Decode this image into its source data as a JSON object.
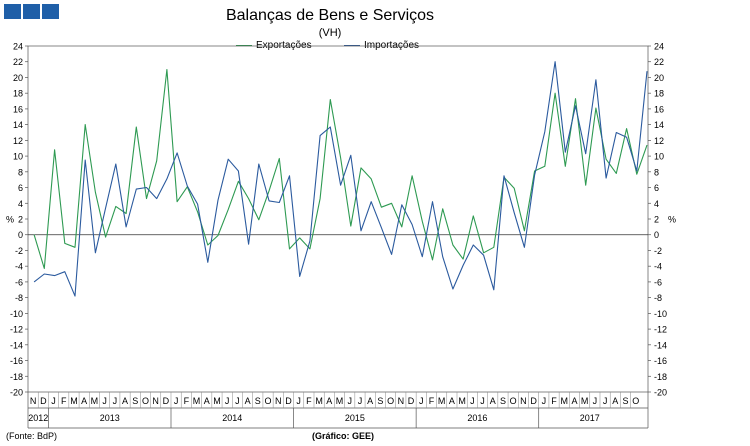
{
  "header": {
    "title": "Balanças de Bens e Serviços",
    "subtitle": "(VH)",
    "unit_left": "%",
    "unit_right": "%"
  },
  "footer": {
    "source": "(Fonte: BdP)",
    "credit": "(Gráfico: GEE)"
  },
  "chart_data": {
    "type": "line",
    "title": "Balanças de Bens e Serviços",
    "subtitle": "(VH)",
    "ylabel": "%",
    "ylabel_right": "%",
    "ylim": [
      -20,
      24
    ],
    "ytick_step": 2,
    "grid": false,
    "legend_position": "top-center",
    "month_labels": [
      "N",
      "D",
      "J",
      "F",
      "M",
      "A",
      "M",
      "J",
      "J",
      "A",
      "S",
      "O",
      "N",
      "D",
      "J",
      "F",
      "M",
      "A",
      "M",
      "J",
      "J",
      "A",
      "S",
      "O",
      "N",
      "D",
      "J",
      "F",
      "M",
      "A",
      "M",
      "J",
      "J",
      "A",
      "S",
      "O",
      "N",
      "D",
      "J",
      "F",
      "M",
      "A",
      "M",
      "J",
      "J",
      "A",
      "S",
      "O",
      "N",
      "D",
      "J",
      "F",
      "M",
      "A",
      "M",
      "J",
      "J",
      "A",
      "S",
      "O"
    ],
    "year_groups": [
      {
        "label": "2012",
        "start": 0,
        "count": 2
      },
      {
        "label": "2013",
        "start": 2,
        "count": 12
      },
      {
        "label": "2014",
        "start": 14,
        "count": 12
      },
      {
        "label": "2015",
        "start": 26,
        "count": 12
      },
      {
        "label": "2016",
        "start": 38,
        "count": 12
      },
      {
        "label": "2017",
        "start": 50,
        "count": 10
      }
    ],
    "series": [
      {
        "name": "Exportações",
        "color": "#2e9a52",
        "values": [
          0,
          -4.3,
          10.8,
          -1.1,
          -1.6,
          14,
          5.4,
          -0.3,
          3.6,
          2.7,
          13.7,
          4.6,
          9.4,
          21,
          4.2,
          6.1,
          2.9,
          -1.3,
          -0.1,
          3.2,
          6.8,
          4.6,
          1.9,
          5.6,
          9.7,
          -1.8,
          -0.4,
          -1.8,
          4.6,
          17.2,
          9.8,
          1.1,
          8.5,
          7.1,
          3.5,
          4,
          1,
          7.5,
          1.7,
          -3.2,
          3.3,
          -1.3,
          -3.1,
          2.4,
          -2.3,
          -1.6,
          7.3,
          5.9,
          0.5,
          8.1,
          8.7,
          18,
          8.7,
          17.3,
          6.3,
          16.1,
          9.6,
          7.8,
          13.5,
          7.7
        ]
      },
      {
        "name": "Importações",
        "color": "#2b5a9e",
        "values": [
          -6,
          -5,
          -5.2,
          -4.7,
          -7.8,
          9.5,
          -2.3,
          3.4,
          9,
          1,
          5.8,
          6,
          4.6,
          7.1,
          10.4,
          6.2,
          3.9,
          -3.5,
          4.4,
          9.6,
          8.1,
          -1.2,
          9,
          4.3,
          4.1,
          7.5,
          -5.3,
          -0.8,
          12.6,
          13.7,
          6.3,
          10.1,
          0.5,
          4.2,
          0.9,
          -2.5,
          3.8,
          1.3,
          -2.8,
          4.2,
          -2.8,
          -6.9,
          -3.9,
          -1.3,
          -2.6,
          -7,
          7.5,
          2.8,
          -1.6,
          7.6,
          13.1,
          22,
          10.5,
          16.4,
          10.3,
          19.7,
          7.2,
          13,
          12.4,
          8.1
        ]
      }
    ],
    "last_values": [
      11.4,
      20.8
    ]
  }
}
